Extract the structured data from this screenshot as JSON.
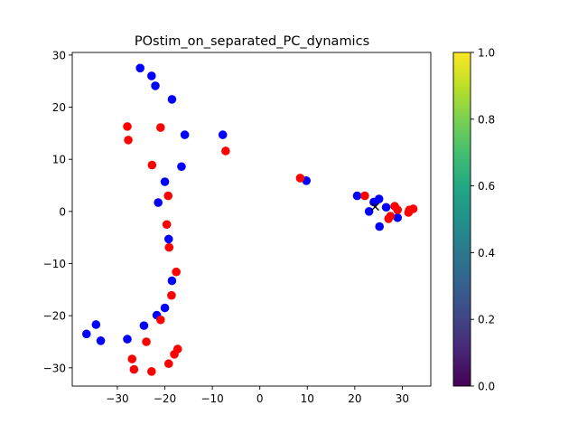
{
  "chart_data": {
    "type": "scatter",
    "title": "POstim_on_separated_PC_dynamics",
    "xlabel": "",
    "ylabel": "",
    "xlim": [
      -39.5,
      36
    ],
    "ylim": [
      -33.5,
      30.5
    ],
    "xticks": [
      -30,
      -20,
      -10,
      0,
      10,
      20,
      30
    ],
    "yticks": [
      -30,
      -20,
      -10,
      0,
      10,
      20,
      30
    ],
    "xtick_labels": [
      "−30",
      "−20",
      "−10",
      "0",
      "10",
      "20",
      "30"
    ],
    "ytick_labels": [
      "−30",
      "−20",
      "−10",
      "0",
      "10",
      "20",
      "30"
    ],
    "grid": false,
    "series": [
      {
        "color": "#0000ff",
        "points": [
          [
            -25.2,
            27.5
          ],
          [
            -22.8,
            26.0
          ],
          [
            -22.0,
            24.1
          ],
          [
            -18.5,
            21.5
          ],
          [
            -15.8,
            14.7
          ],
          [
            -7.8,
            14.7
          ],
          [
            -16.5,
            8.6
          ],
          [
            -20.0,
            5.7
          ],
          [
            -21.4,
            1.7
          ],
          [
            -19.2,
            -5.3
          ],
          [
            -18.5,
            -13.3
          ],
          [
            -20.0,
            -18.5
          ],
          [
            -21.7,
            -19.9
          ],
          [
            -24.4,
            -21.9
          ],
          [
            -34.5,
            -21.7
          ],
          [
            -36.5,
            -23.5
          ],
          [
            -33.5,
            -24.8
          ],
          [
            -27.9,
            -24.5
          ],
          [
            9.8,
            5.9
          ],
          [
            20.5,
            3.0
          ],
          [
            23.0,
            0.0
          ],
          [
            24.0,
            1.8
          ],
          [
            25.1,
            2.4
          ],
          [
            25.2,
            -2.9
          ],
          [
            26.6,
            0.8
          ],
          [
            29.0,
            -1.2
          ]
        ]
      },
      {
        "color": "#ff0000",
        "points": [
          [
            -27.9,
            16.3
          ],
          [
            -20.9,
            16.1
          ],
          [
            -27.7,
            13.7
          ],
          [
            -7.2,
            11.6
          ],
          [
            -22.7,
            8.9
          ],
          [
            -19.3,
            3.0
          ],
          [
            -19.6,
            -2.5
          ],
          [
            -19.1,
            -6.9
          ],
          [
            -17.6,
            -11.6
          ],
          [
            -18.6,
            -16.1
          ],
          [
            -20.9,
            -20.8
          ],
          [
            -23.9,
            -25.0
          ],
          [
            -17.3,
            -26.4
          ],
          [
            -18.0,
            -27.4
          ],
          [
            -26.9,
            -28.3
          ],
          [
            -26.5,
            -30.3
          ],
          [
            -22.8,
            -30.7
          ],
          [
            -19.2,
            -29.2
          ],
          [
            8.5,
            6.4
          ],
          [
            22.1,
            3.0
          ],
          [
            27.1,
            -1.4
          ],
          [
            27.5,
            -0.9
          ],
          [
            28.4,
            1.0
          ],
          [
            29.0,
            0.3
          ],
          [
            31.3,
            -0.2
          ],
          [
            31.5,
            0.3
          ],
          [
            32.3,
            0.5
          ]
        ]
      },
      {
        "color": "#000000",
        "marker": "x",
        "points": [
          [
            24.3,
            0.9
          ]
        ]
      }
    ],
    "colorbar": {
      "colormap": "viridis",
      "range": [
        0,
        1
      ],
      "ticks": [
        "0.0",
        "0.2",
        "0.4",
        "0.6",
        "0.8",
        "1.0"
      ]
    }
  }
}
